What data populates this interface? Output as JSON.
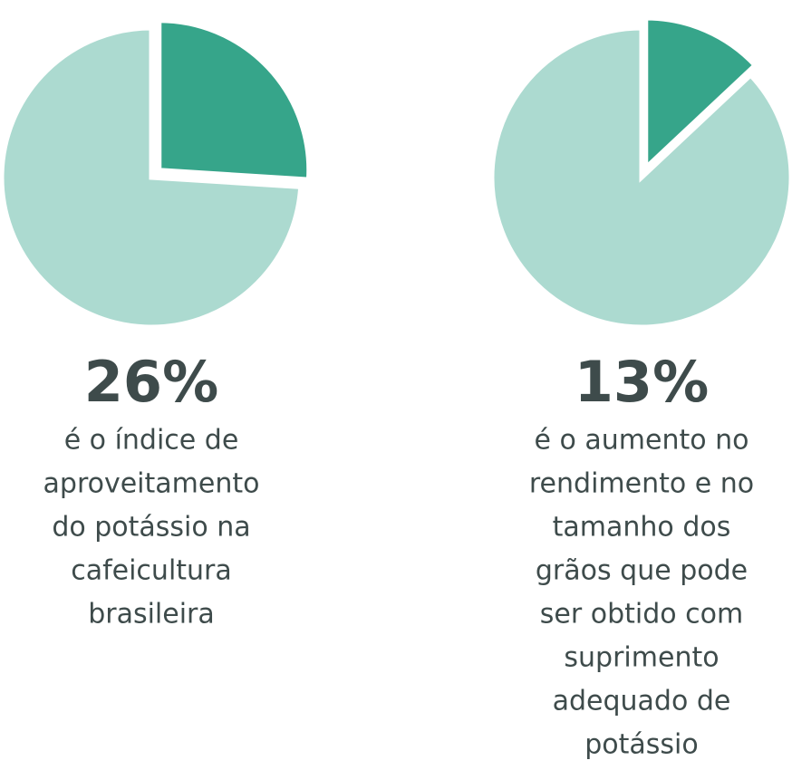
{
  "chart_data": [
    {
      "type": "pie",
      "values": [
        26,
        74
      ],
      "value_labels": [
        "26%",
        null
      ],
      "colors": [
        "#36a58a",
        "#acdad0"
      ],
      "description": [
        "é o índice de",
        "aproveitamento",
        "do potássio na",
        "cafeicultura",
        "brasileira"
      ]
    },
    {
      "type": "pie",
      "values": [
        13,
        87
      ],
      "value_labels": [
        "13%",
        null
      ],
      "colors": [
        "#36a58a",
        "#acdad0"
      ],
      "description": [
        "é o aumento no",
        "rendimento e no",
        "tamanho dos",
        "grãos que pode",
        "ser obtido com",
        "suprimento",
        "adequado de",
        "potássio"
      ]
    }
  ]
}
